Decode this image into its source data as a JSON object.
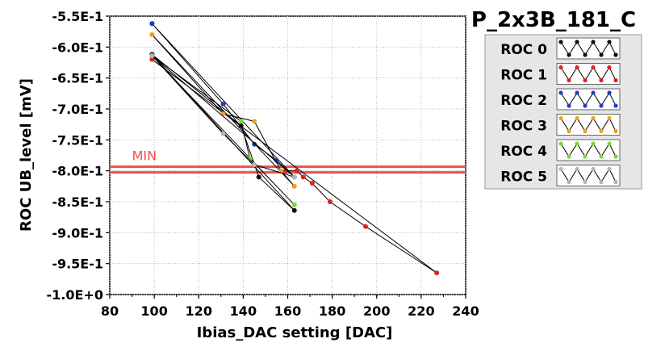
{
  "chart_data": {
    "type": "line",
    "title": "P_2x3B_181_C",
    "xlabel": "Ibias_DAC setting [DAC]",
    "ylabel": "ROC UB_level [mV]",
    "xlim": [
      80,
      240
    ],
    "ylim": [
      -1.0,
      -0.55
    ],
    "x_ticks": [
      80,
      100,
      120,
      140,
      160,
      180,
      200,
      220,
      240
    ],
    "x_tick_labels": [
      "80",
      "100",
      "120",
      "140",
      "160",
      "180",
      "200",
      "220",
      "240"
    ],
    "y_ticks": [
      -0.55,
      -0.6,
      -0.65,
      -0.7,
      -0.75,
      -0.8,
      -0.85,
      -0.9,
      -0.95,
      -1.0
    ],
    "y_tick_labels": [
      "-5.5E-1",
      "-6.0E-1",
      "-6.5E-1",
      "-7.0E-1",
      "-7.5E-1",
      "-8.0E-1",
      "-8.5E-1",
      "-9.0E-1",
      "-9.5E-1",
      "-1.0E+0"
    ],
    "grid": true,
    "legend_position": "top-right",
    "min_band": {
      "label": "MIN",
      "y_values": [
        -0.7935,
        -0.8025
      ],
      "color": "#e8534a"
    },
    "series": [
      {
        "name": "ROC 0",
        "color": "#111111",
        "points": [
          [
            99,
            -0.612
          ],
          [
            139,
            -0.727
          ],
          [
            147,
            -0.81
          ],
          [
            163,
            -0.864
          ],
          [
            99,
            -0.612
          ]
        ]
      },
      {
        "name": "ROC 1",
        "color": "#dd2222",
        "points": [
          [
            159,
            -0.8
          ],
          [
            164,
            -0.8
          ],
          [
            167,
            -0.81
          ],
          [
            171,
            -0.82
          ],
          [
            179,
            -0.85
          ],
          [
            195,
            -0.89
          ],
          [
            227,
            -0.965
          ],
          [
            99,
            -0.62
          ]
        ]
      },
      {
        "name": "ROC 2",
        "color": "#1e3fbf",
        "points": [
          [
            99,
            -0.562
          ],
          [
            131,
            -0.692
          ],
          [
            145,
            -0.757
          ],
          [
            155,
            -0.783
          ],
          [
            163,
            -0.81
          ],
          [
            99,
            -0.562
          ]
        ]
      },
      {
        "name": "ROC 3",
        "color": "#f0a020",
        "points": [
          [
            99,
            -0.58
          ],
          [
            131,
            -0.708
          ],
          [
            145,
            -0.72
          ],
          [
            157,
            -0.8
          ],
          [
            163,
            -0.825
          ],
          [
            99,
            -0.58
          ]
        ]
      },
      {
        "name": "ROC 4",
        "color": "#7cd63a",
        "points": [
          [
            99,
            -0.614
          ],
          [
            139,
            -0.72
          ],
          [
            143,
            -0.78
          ],
          [
            163,
            -0.855
          ],
          [
            99,
            -0.614
          ]
        ]
      },
      {
        "name": "ROC 5",
        "color": "#b4b4b4",
        "points": [
          [
            99,
            -0.614
          ],
          [
            131,
            -0.74
          ],
          [
            145,
            -0.79
          ],
          [
            163,
            -0.81
          ],
          [
            99,
            -0.614
          ]
        ]
      }
    ]
  }
}
